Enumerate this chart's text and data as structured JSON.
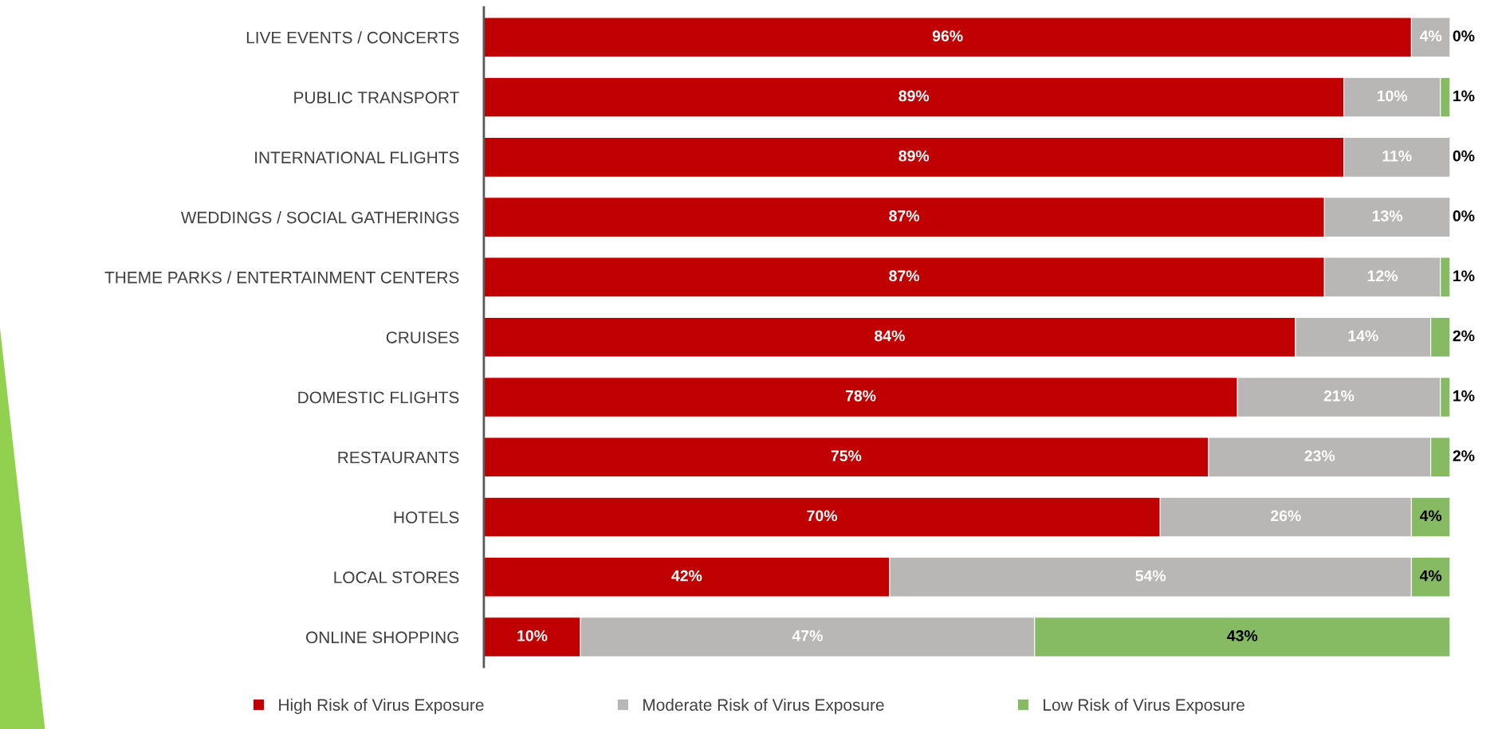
{
  "chart_data": {
    "type": "bar",
    "orientation": "horizontal",
    "stacked": true,
    "legend": "bottom",
    "categories": [
      "LIVE EVENTS / CONCERTS",
      "PUBLIC TRANSPORT",
      "INTERNATIONAL FLIGHTS",
      "WEDDINGS / SOCIAL GATHERINGS",
      "THEME PARKS / ENTERTAINMENT CENTERS",
      "CRUISES",
      "DOMESTIC FLIGHTS",
      "RESTAURANTS",
      "HOTELS",
      "LOCAL STORES",
      "ONLINE SHOPPING"
    ],
    "series": [
      {
        "name": "High Risk of Virus Exposure",
        "color": "#c00000",
        "values": [
          96,
          89,
          89,
          87,
          87,
          84,
          78,
          75,
          70,
          42,
          10
        ],
        "value_labels": [
          "96%",
          "89%",
          "89%",
          "87%",
          "87%",
          "84%",
          "78%",
          "75%",
          "70%",
          "42%",
          "10%"
        ]
      },
      {
        "name": "Moderate Risk of Virus Exposure",
        "color": "#b8b7b6",
        "values": [
          4,
          10,
          11,
          13,
          12,
          14,
          21,
          23,
          26,
          54,
          47
        ],
        "value_labels": [
          "4%",
          "10%",
          "11%",
          "13%",
          "12%",
          "14%",
          "21%",
          "23%",
          "26%",
          "54%",
          "47%"
        ]
      },
      {
        "name": "Low Risk of Virus Exposure",
        "color": "#86bb64",
        "values": [
          0,
          1,
          0,
          0,
          1,
          2,
          1,
          2,
          4,
          4,
          43
        ],
        "value_labels": [
          "0%",
          "1%",
          "0%",
          "0%",
          "1%",
          "2%",
          "1%",
          "2%",
          "4%",
          "4%",
          "43%"
        ]
      }
    ]
  }
}
